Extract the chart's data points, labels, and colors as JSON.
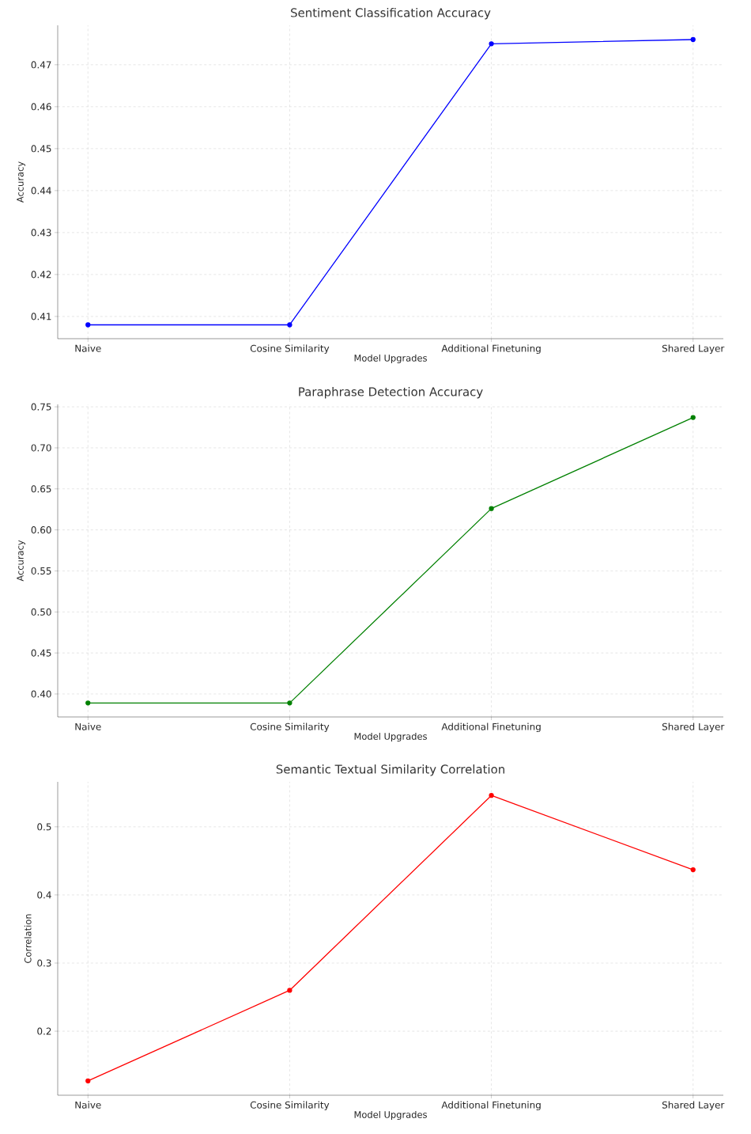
{
  "chart_data": [
    {
      "type": "line",
      "title": "Sentiment Classification Accuracy",
      "xlabel": "Model Upgrades",
      "ylabel": "Accuracy",
      "categories": [
        "Naive",
        "Cosine Similarity",
        "Additional Finetuning",
        "Shared Layer"
      ],
      "series": [
        {
          "color": "#0000ff",
          "values": [
            0.408,
            0.408,
            0.475,
            0.476
          ]
        }
      ],
      "ylim": [
        0.4047,
        0.4794
      ],
      "yticks": [
        0.41,
        0.42,
        0.43,
        0.44,
        0.45,
        0.46,
        0.47
      ],
      "grid": true,
      "marker": "circle",
      "line_style": "solid"
    },
    {
      "type": "line",
      "title": "Paraphrase Detection Accuracy",
      "xlabel": "Model Upgrades",
      "ylabel": "Accuracy",
      "categories": [
        "Naive",
        "Cosine Similarity",
        "Additional Finetuning",
        "Shared Layer"
      ],
      "series": [
        {
          "color": "#008000",
          "values": [
            0.389,
            0.389,
            0.626,
            0.737
          ]
        }
      ],
      "ylim": [
        0.372,
        0.753
      ],
      "yticks": [
        {
          "value": 0.4,
          "label": "0.40"
        },
        {
          "value": 0.45,
          "label": "0.45"
        },
        {
          "value": 0.5,
          "label": "0.50"
        },
        {
          "value": 0.55,
          "label": "0.55"
        },
        {
          "value": 0.6,
          "label": "0.60"
        },
        {
          "value": 0.65,
          "label": "0.65"
        },
        {
          "value": 0.7,
          "label": "0.70"
        },
        {
          "value": 0.75,
          "label": "0.75"
        }
      ],
      "grid": true,
      "marker": "circle",
      "line_style": "solid"
    },
    {
      "type": "line",
      "title": "Semantic Textual Similarity Correlation",
      "xlabel": "Model Upgrades",
      "ylabel": "Correlation",
      "categories": [
        "Naive",
        "Cosine Similarity",
        "Additional Finetuning",
        "Shared Layer"
      ],
      "series": [
        {
          "color": "#ff0000",
          "values": [
            0.127,
            0.26,
            0.546,
            0.437
          ]
        }
      ],
      "ylim": [
        0.106,
        0.566
      ],
      "yticks": [
        0.2,
        0.3,
        0.4,
        0.5
      ],
      "grid": true,
      "marker": "circle",
      "line_style": "solid"
    }
  ]
}
